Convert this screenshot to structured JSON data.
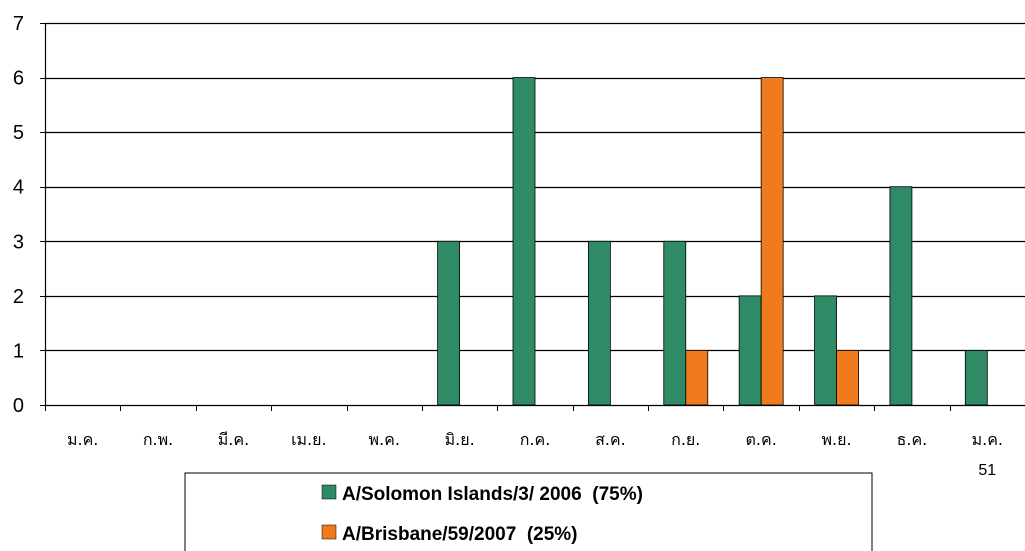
{
  "chart_data": {
    "type": "bar",
    "title": "",
    "xlabel": "",
    "ylabel": "",
    "ylim": [
      0,
      7
    ],
    "yticks": [
      0,
      1,
      2,
      3,
      4,
      5,
      6,
      7
    ],
    "grid": true,
    "legend_position": "bottom",
    "categories": [
      "ม.ค.",
      "ก.พ.",
      "มี.ค.",
      "เม.ย.",
      "พ.ค.",
      "มิ.ย.",
      "ก.ค.",
      "ส.ค.",
      "ก.ย.",
      "ต.ค.",
      "พ.ย.",
      "ธ.ค.",
      "ม.ค."
    ],
    "category_sublabels": [
      "",
      "",
      "",
      "",
      "",
      "",
      "",
      "",
      "",
      "",
      "",
      "",
      "51"
    ],
    "series": [
      {
        "name": "A/Solomon Islands/3/ 2006  (75%)",
        "color": "#2E8B66",
        "values": [
          0,
          0,
          0,
          0,
          0,
          3,
          6,
          3,
          3,
          2,
          2,
          4,
          1
        ]
      },
      {
        "name": "A/Brisbane/59/2007  (25%)",
        "color": "#F07A1E",
        "values": [
          0,
          0,
          0,
          0,
          0,
          0,
          0,
          0,
          1,
          6,
          1,
          0,
          0
        ]
      }
    ]
  }
}
